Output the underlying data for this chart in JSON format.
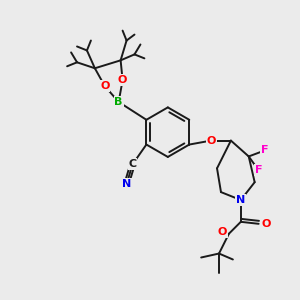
{
  "bg_color": "#ebebeb",
  "bond_color": "#1a1a1a",
  "atom_colors": {
    "O": "#ff0000",
    "N": "#0000ee",
    "B": "#00aa00",
    "F": "#ff00cc",
    "CN_C": "#1a1a1a",
    "CN_N": "#0000ee"
  },
  "figsize": [
    3.0,
    3.0
  ],
  "dpi": 100,
  "bond_lw": 1.4
}
